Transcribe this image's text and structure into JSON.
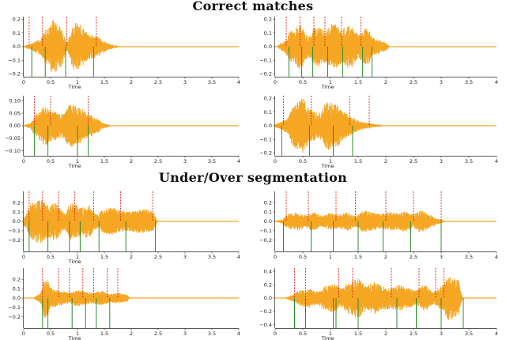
{
  "sections": [
    {
      "title": "Correct matches"
    },
    {
      "title": "Under/Over segmentation"
    }
  ],
  "colors": {
    "waveform": "#f5a623",
    "reference_boundary": "#e0201b",
    "predicted_boundary": "#2e8b2e",
    "axis": "#222222"
  },
  "chart_data": [
    {
      "type": "line",
      "title": "",
      "xlabel": "Time",
      "ylabel": "",
      "xlim": [
        0,
        4
      ],
      "ylim": [
        -0.22,
        0.22
      ],
      "x_ticks": [
        0,
        0.5,
        1,
        1.5,
        2,
        2.5,
        3,
        3.5,
        4
      ],
      "x_tick_labels": [
        "0",
        "0.5",
        "1",
        "1.5",
        "2",
        "2.5",
        "3",
        "3.5",
        "4"
      ],
      "y_ticks": [
        0.2,
        0.1,
        0,
        -0.1,
        -0.2
      ],
      "y_tick_labels": [
        "0.2",
        "0.1",
        "0.0",
        "−0.1",
        "−0.2"
      ],
      "waveform_envelope": {
        "x": [
          0.1,
          0.3,
          0.45,
          0.55,
          0.7,
          0.8,
          0.95,
          1.05,
          1.2,
          1.35,
          1.5,
          1.6,
          1.7,
          1.8,
          2.0,
          2.5,
          4.0
        ],
        "amplitude": [
          0.02,
          0.06,
          0.14,
          0.2,
          0.15,
          0.04,
          0.18,
          0.16,
          0.1,
          0.08,
          0.04,
          0.02,
          0.01,
          0,
          0,
          0,
          0
        ]
      },
      "reference_boundaries": [
        0.1,
        0.35,
        0.8,
        1.35
      ],
      "predicted_boundaries": [
        0.15,
        0.4,
        0.78,
        1.3
      ]
    },
    {
      "type": "line",
      "title": "",
      "xlabel": "Time",
      "ylabel": "",
      "xlim": [
        0,
        4
      ],
      "ylim": [
        -0.22,
        0.22
      ],
      "x_ticks": [
        0,
        0.5,
        1,
        1.5,
        2,
        2.5,
        3,
        3.5,
        4
      ],
      "x_tick_labels": [
        "0",
        "0.5",
        "1",
        "1.5",
        "2",
        "2.5",
        "3",
        "3.5",
        "4"
      ],
      "y_ticks": [
        0.2,
        0.1,
        0,
        -0.1,
        -0.2
      ],
      "y_tick_labels": [
        "0.2",
        "0.1",
        "0.0",
        "−0.1",
        "−0.2"
      ],
      "waveform_envelope": {
        "x": [
          0.15,
          0.3,
          0.45,
          0.6,
          0.75,
          0.9,
          1.05,
          1.2,
          1.35,
          1.5,
          1.65,
          1.8,
          1.95,
          2.1,
          4.0
        ],
        "amplitude": [
          0.04,
          0.12,
          0.16,
          0.08,
          0.15,
          0.12,
          0.17,
          0.13,
          0.16,
          0.1,
          0.14,
          0.06,
          0.04,
          0,
          0
        ]
      },
      "reference_boundaries": [
        0.2,
        0.45,
        0.7,
        0.9,
        1.2,
        1.55
      ],
      "predicted_boundaries": [
        0.25,
        0.48,
        0.68,
        0.95,
        1.22,
        1.58,
        1.75
      ]
    },
    {
      "type": "line",
      "title": "",
      "xlabel": "Time",
      "ylabel": "",
      "xlim": [
        0,
        4
      ],
      "ylim": [
        -0.12,
        0.12
      ],
      "x_ticks": [
        0,
        0.5,
        1,
        1.5,
        2,
        2.5,
        3,
        3.5,
        4
      ],
      "x_tick_labels": [
        "0",
        "0.5",
        "1",
        "1.5",
        "2",
        "2.5",
        "3",
        "3.5",
        "4"
      ],
      "y_ticks": [
        0.1,
        0.05,
        0,
        -0.05,
        -0.1
      ],
      "y_tick_labels": [
        "0.10",
        "0.05",
        "0.00",
        "−0.05",
        "−0.10"
      ],
      "waveform_envelope": {
        "x": [
          0.1,
          0.25,
          0.4,
          0.55,
          0.7,
          0.9,
          1.05,
          1.2,
          1.35,
          1.5,
          1.65,
          4.0
        ],
        "amplitude": [
          0.01,
          0.05,
          0.08,
          0.06,
          0.05,
          0.09,
          0.07,
          0.05,
          0.03,
          0.01,
          0,
          0
        ]
      },
      "reference_boundaries": [
        0.2,
        0.5,
        1.2
      ],
      "predicted_boundaries": [
        0.2,
        0.45,
        1.0,
        1.2
      ]
    },
    {
      "type": "line",
      "title": "",
      "xlabel": "Time",
      "ylabel": "",
      "xlim": [
        0,
        4
      ],
      "ylim": [
        -0.22,
        0.22
      ],
      "x_ticks": [
        0,
        0.5,
        1,
        1.5,
        2,
        2.5,
        3,
        3.5,
        4
      ],
      "x_tick_labels": [
        "0",
        "0.5",
        "1",
        "1.5",
        "2",
        "2.5",
        "3",
        "3.5",
        "4"
      ],
      "y_ticks": [
        0.2,
        0.1,
        0,
        -0.1,
        -0.2
      ],
      "y_tick_labels": [
        "0.2",
        "0.1",
        "0.0",
        "−0.1",
        "−0.2"
      ],
      "waveform_envelope": {
        "x": [
          0.05,
          0.2,
          0.35,
          0.5,
          0.65,
          0.8,
          0.95,
          1.1,
          1.25,
          1.4,
          1.55,
          1.7,
          1.85,
          2.0,
          4.0
        ],
        "amplitude": [
          0.02,
          0.05,
          0.17,
          0.2,
          0.12,
          0.1,
          0.18,
          0.16,
          0.1,
          0.06,
          0.03,
          0.02,
          0.01,
          0,
          0
        ]
      },
      "reference_boundaries": [
        0.15,
        0.65,
        1.35,
        1.7
      ],
      "predicted_boundaries": [
        0.12,
        0.62,
        1.05,
        1.4
      ]
    },
    {
      "type": "line",
      "title": "",
      "xlabel": "Time",
      "ylabel": "",
      "xlim": [
        0,
        4
      ],
      "ylim": [
        -0.32,
        0.32
      ],
      "x_ticks": [
        0,
        0.5,
        1,
        1.5,
        2,
        2.5,
        3,
        3.5,
        4
      ],
      "x_tick_labels": [
        "0",
        "0.5",
        "1",
        "1.5",
        "2",
        "2.5",
        "3",
        "3.5",
        "4"
      ],
      "y_ticks": [
        0.2,
        0.1,
        0,
        -0.1,
        -0.2
      ],
      "y_tick_labels": [
        "0.2",
        "0.1",
        "0.0",
        "−0.1",
        "−0.2"
      ],
      "waveform_envelope": {
        "x": [
          0.0,
          0.15,
          0.3,
          0.45,
          0.6,
          0.75,
          0.9,
          1.05,
          1.2,
          1.35,
          1.5,
          1.65,
          1.8,
          1.95,
          2.1,
          2.25,
          2.4,
          2.5,
          4.0
        ],
        "amplitude": [
          0.05,
          0.2,
          0.24,
          0.18,
          0.2,
          0.1,
          0.2,
          0.16,
          0.18,
          0.08,
          0.13,
          0.15,
          0.12,
          0.11,
          0.12,
          0.13,
          0.11,
          0,
          0
        ]
      },
      "reference_boundaries": [
        0.1,
        0.35,
        0.65,
        0.95,
        1.3,
        1.8,
        2.4
      ],
      "predicted_boundaries": [
        0.1,
        0.45,
        0.85,
        1.05,
        1.4,
        1.9,
        2.45
      ]
    },
    {
      "type": "line",
      "title": "",
      "xlabel": "",
      "ylabel": "",
      "xlim": [
        0,
        4
      ],
      "ylim": [
        -0.32,
        0.32
      ],
      "x_ticks": [
        0,
        0.5,
        1,
        1.5,
        2,
        2.5,
        3,
        3.5,
        4
      ],
      "x_tick_labels": [
        "0",
        "0.5",
        "1",
        "1.5",
        "2",
        "2.5",
        "3",
        "3.5",
        "4"
      ],
      "y_ticks": [
        0.2,
        0.1,
        0,
        -0.1,
        -0.2
      ],
      "y_tick_labels": [
        "0.2",
        "0.1",
        "0.0",
        "−0.1",
        "−0.2"
      ],
      "waveform_envelope": {
        "x": [
          0.1,
          0.25,
          0.4,
          0.55,
          0.7,
          0.85,
          1.0,
          1.15,
          1.3,
          1.45,
          1.6,
          1.75,
          1.9,
          2.05,
          2.2,
          2.35,
          2.5,
          2.65,
          2.8,
          2.95,
          3.1,
          4.0
        ],
        "amplitude": [
          0.02,
          0.08,
          0.1,
          0.07,
          0.1,
          0.06,
          0.09,
          0.08,
          0.1,
          0.06,
          0.12,
          0.1,
          0.08,
          0.1,
          0.09,
          0.11,
          0.08,
          0.12,
          0.07,
          0.03,
          0,
          0
        ]
      },
      "reference_boundaries": [
        0.2,
        0.6,
        1.1,
        1.45,
        2.0,
        2.5,
        3.0
      ],
      "predicted_boundaries": [
        0.15,
        0.65,
        1.05,
        1.5,
        1.95,
        2.45,
        3.0
      ]
    },
    {
      "type": "line",
      "title": "",
      "xlabel": "Time",
      "ylabel": "",
      "xlim": [
        0,
        4
      ],
      "ylim": [
        -0.32,
        0.32
      ],
      "x_ticks": [
        0,
        0.5,
        1,
        1.5,
        2,
        2.5,
        3,
        3.5,
        4
      ],
      "x_tick_labels": [
        "0",
        "0.5",
        "1",
        "1.5",
        "2",
        "2.5",
        "3",
        "3.5",
        "4"
      ],
      "y_ticks": [
        0.2,
        0.1,
        0,
        -0.1,
        -0.2
      ],
      "y_tick_labels": [
        "0.2",
        "0.1",
        "0.0",
        "−0.1",
        "−0.2"
      ],
      "waveform_envelope": {
        "x": [
          0.3,
          0.4,
          0.55,
          0.7,
          0.85,
          1.0,
          1.15,
          1.3,
          1.45,
          1.6,
          1.75,
          1.9,
          2.0,
          4.0
        ],
        "amplitude": [
          0.05,
          0.22,
          0.1,
          0.08,
          0.06,
          0.09,
          0.07,
          0.06,
          0.08,
          0.05,
          0.06,
          0.04,
          0,
          0
        ]
      },
      "reference_boundaries": [
        0.35,
        0.65,
        0.85,
        1.1,
        1.3,
        1.55,
        1.75
      ],
      "predicted_boundaries": [
        0.35,
        0.45,
        0.9,
        1.15,
        1.35,
        1.6
      ]
    },
    {
      "type": "line",
      "title": "",
      "xlabel": "Time",
      "ylabel": "",
      "xlim": [
        0,
        4
      ],
      "ylim": [
        -0.45,
        0.45
      ],
      "x_ticks": [
        0,
        0.5,
        1,
        1.5,
        2,
        2.5,
        3,
        3.5,
        4
      ],
      "x_tick_labels": [
        "0",
        "0.5",
        "1",
        "1.5",
        "2",
        "2.5",
        "3",
        "3.5",
        "4"
      ],
      "y_ticks": [
        0.4,
        0.2,
        0,
        -0.2,
        -0.4
      ],
      "y_tick_labels": [
        "0.4",
        "0.2",
        "0.0",
        "−0.2",
        "−0.4"
      ],
      "waveform_envelope": {
        "x": [
          0.3,
          0.45,
          0.6,
          0.75,
          0.9,
          1.05,
          1.2,
          1.35,
          1.5,
          1.65,
          1.8,
          1.95,
          2.1,
          2.25,
          2.4,
          2.55,
          2.7,
          2.85,
          3.0,
          3.15,
          3.3,
          3.4,
          4.0
        ],
        "amplitude": [
          0.05,
          0.12,
          0.15,
          0.1,
          0.18,
          0.22,
          0.15,
          0.25,
          0.3,
          0.2,
          0.24,
          0.18,
          0.16,
          0.2,
          0.15,
          0.12,
          0.2,
          0.1,
          0.18,
          0.35,
          0.28,
          0,
          0
        ]
      },
      "reference_boundaries": [
        0.35,
        0.55,
        1.15,
        1.4,
        2.1,
        2.6,
        2.9,
        3.05
      ],
      "predicted_boundaries": [
        0.35,
        0.55,
        1.05,
        1.1,
        1.5,
        2.2,
        2.55,
        3.0,
        3.4
      ]
    }
  ]
}
